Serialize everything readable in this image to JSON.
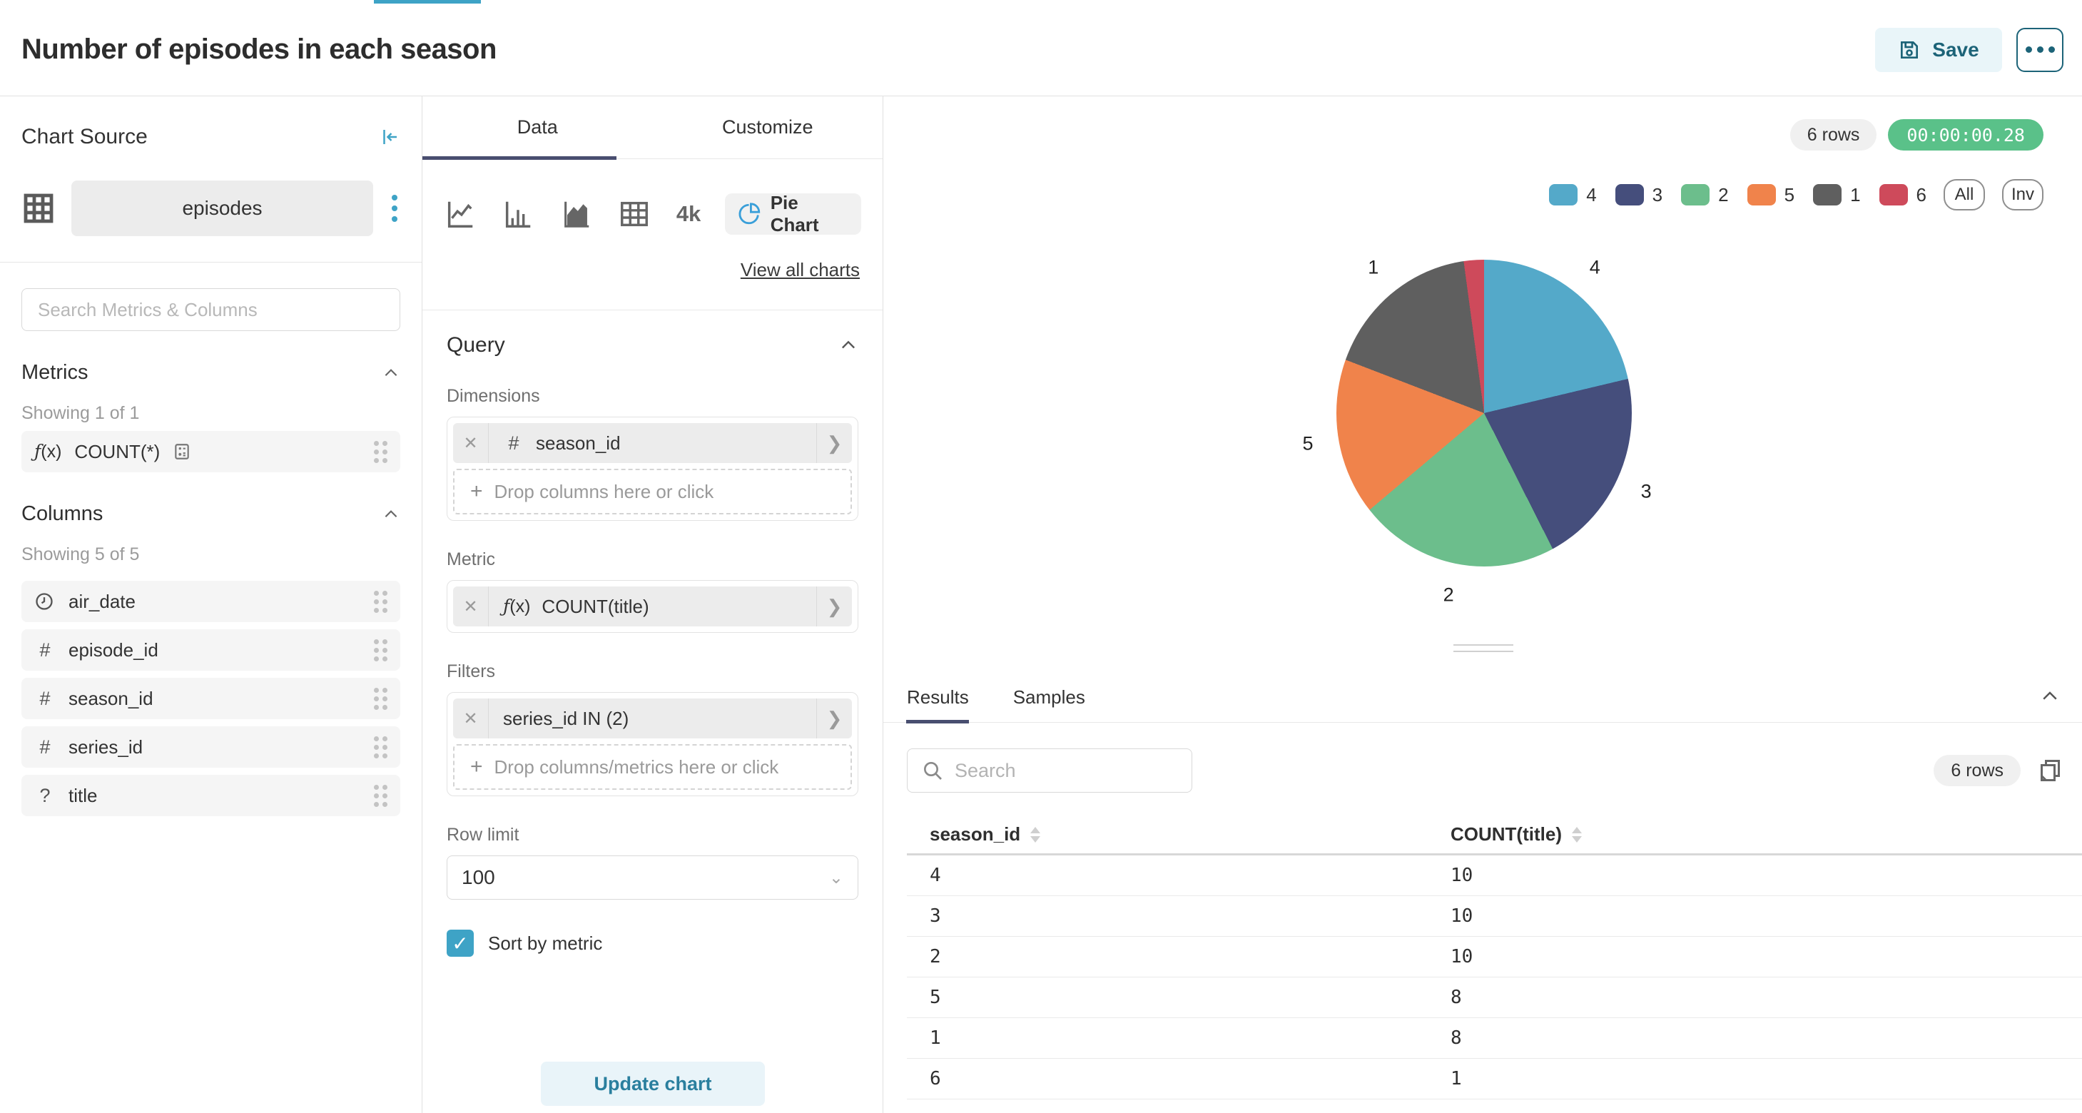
{
  "colors": {
    "accent": "#3EA3C6",
    "teal_dark": "#1C6378",
    "tab_underline": "#494E70",
    "timer_green": "#5AC189"
  },
  "header": {
    "title": "Number of episodes in each season",
    "save_label": "Save"
  },
  "chart_source": {
    "title": "Chart Source",
    "dataset": "episodes",
    "search_placeholder": "Search Metrics & Columns",
    "metrics": {
      "label": "Metrics",
      "showing": "Showing 1 of 1",
      "items": [
        {
          "prefix": "f(x)",
          "name": "COUNT(*)"
        }
      ]
    },
    "columns": {
      "label": "Columns",
      "showing": "Showing 5 of 5",
      "items": [
        {
          "icon": "clock",
          "name": "air_date"
        },
        {
          "icon": "hash",
          "name": "episode_id"
        },
        {
          "icon": "hash",
          "name": "season_id"
        },
        {
          "icon": "hash",
          "name": "series_id"
        },
        {
          "icon": "question",
          "name": "title"
        }
      ]
    }
  },
  "control_panel": {
    "tabs": {
      "data": "Data",
      "customize": "Customize",
      "active": "Data"
    },
    "viz_picker": {
      "big_number_label": "4k",
      "selected_chart": "Pie Chart",
      "view_all": "View all charts"
    },
    "query": {
      "title": "Query",
      "dimensions": {
        "label": "Dimensions",
        "chips": [
          {
            "icon": "hash",
            "text": "season_id"
          }
        ],
        "drop_placeholder": "Drop columns here or click"
      },
      "metric": {
        "label": "Metric",
        "chips": [
          {
            "icon": "fx",
            "text": "COUNT(title)"
          }
        ]
      },
      "filters": {
        "label": "Filters",
        "chips": [
          {
            "text": "series_id IN (2)"
          }
        ],
        "drop_placeholder": "Drop columns/metrics here or click"
      },
      "row_limit": {
        "label": "Row limit",
        "value": "100"
      },
      "sort_by_metric": {
        "label": "Sort by metric",
        "checked": true
      },
      "update_button": "Update chart"
    }
  },
  "chart_area": {
    "rows_badge": "6 rows",
    "timer": "00:00:00.28",
    "legend": {
      "items": [
        {
          "label": "4",
          "color": "#54A9C9"
        },
        {
          "label": "3",
          "color": "#454E7C"
        },
        {
          "label": "2",
          "color": "#6CBE8C"
        },
        {
          "label": "5",
          "color": "#F0834B"
        },
        {
          "label": "1",
          "color": "#5F5F5F"
        },
        {
          "label": "6",
          "color": "#CE4A5B"
        }
      ],
      "all_label": "All",
      "inv_label": "Inv"
    }
  },
  "chart_data": {
    "type": "pie",
    "title": "Number of episodes in each season",
    "categories": [
      "4",
      "3",
      "2",
      "5",
      "1",
      "6"
    ],
    "values": [
      10,
      10,
      10,
      8,
      8,
      1
    ],
    "colors": [
      "#54A9C9",
      "#454E7C",
      "#6CBE8C",
      "#F0834B",
      "#5F5F5F",
      "#CE4A5B"
    ],
    "visible_labels": [
      "4",
      "3",
      "2",
      "5",
      "1"
    ],
    "legend_position": "top-right"
  },
  "results": {
    "tabs": {
      "results": "Results",
      "samples": "Samples",
      "active": "Results"
    },
    "search_placeholder": "Search",
    "rows_badge": "6 rows",
    "table": {
      "columns": [
        "season_id",
        "COUNT(title)"
      ],
      "rows": [
        [
          "4",
          "10"
        ],
        [
          "3",
          "10"
        ],
        [
          "2",
          "10"
        ],
        [
          "5",
          "8"
        ],
        [
          "1",
          "8"
        ],
        [
          "6",
          "1"
        ]
      ]
    }
  }
}
